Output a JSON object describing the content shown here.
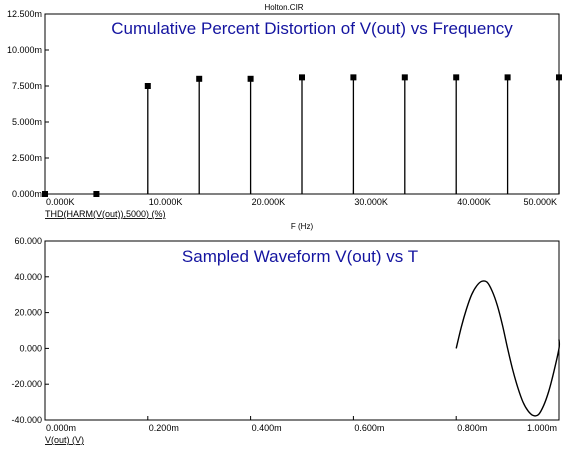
{
  "window_title": "Holton.CIR",
  "x_axis_label": "F (Hz)",
  "chart_data": [
    {
      "type": "scatter",
      "style": "stem",
      "title": "Cumulative Percent Distortion of V(out) vs Frequency",
      "series_label": "THD(HARM(V(out)),5000) (%)",
      "xlabel": "F (Hz)",
      "xlim": [
        0,
        50000
      ],
      "ylim": [
        0,
        0.0125
      ],
      "x_ticks": [
        0,
        10000,
        20000,
        30000,
        40000,
        50000
      ],
      "x_tick_labels": [
        "0.000K",
        "10.000K",
        "20.000K",
        "30.000K",
        "40.000K",
        "50.000K"
      ],
      "y_ticks": [
        0,
        0.0025,
        0.005,
        0.0075,
        0.01,
        0.0125
      ],
      "y_tick_labels": [
        "0.000m",
        "2.500m",
        "5.000m",
        "7.500m",
        "10.000m",
        "12.500m"
      ],
      "x": [
        0,
        5000,
        10000,
        15000,
        20000,
        25000,
        30000,
        35000,
        40000,
        45000,
        50000
      ],
      "y": [
        0,
        0,
        0.0075,
        0.008,
        0.008,
        0.0081,
        0.0081,
        0.0081,
        0.0081,
        0.0081,
        0.0081
      ],
      "grid": false
    },
    {
      "type": "line",
      "title": "Sampled Waveform  V(out) vs T",
      "series_label": "V(out) (V)",
      "xlim": [
        0,
        0.001
      ],
      "ylim": [
        -40,
        60
      ],
      "x_ticks": [
        0,
        0.0002,
        0.0004,
        0.0006,
        0.0008,
        0.001
      ],
      "x_tick_labels": [
        "0.000m",
        "0.200m",
        "0.400m",
        "0.600m",
        "0.800m",
        "1.000m"
      ],
      "y_ticks": [
        -40,
        -20,
        0,
        20,
        40,
        60
      ],
      "y_tick_labels": [
        "-40.000",
        "-20.000",
        "0.000",
        "20.000",
        "40.000",
        "60.000"
      ],
      "x": [
        0.0008,
        0.00081,
        0.00082,
        0.00083,
        0.00084,
        0.00085,
        0.00086,
        0.00087,
        0.00088,
        0.00089,
        0.0009,
        0.00091,
        0.00092,
        0.00093,
        0.00094,
        0.00095,
        0.00096,
        0.00097,
        0.00098,
        0.00099,
        0.001,
        0.00101
      ],
      "y": [
        0,
        12,
        22,
        30,
        35,
        37.5,
        37,
        32,
        24,
        13,
        0,
        -12,
        -22,
        -30,
        -35,
        -37.5,
        -37,
        -32,
        -24,
        -13,
        0,
        5
      ],
      "grid": false
    }
  ]
}
